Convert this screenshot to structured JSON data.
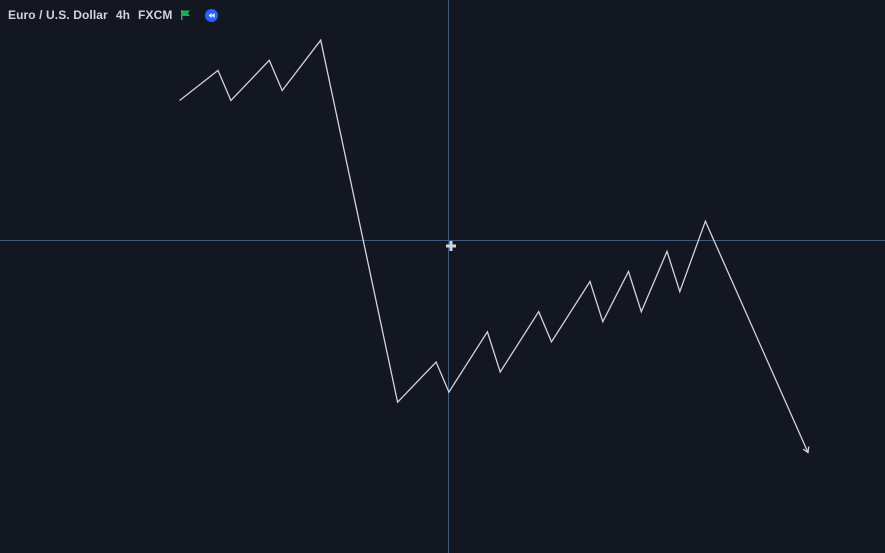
{
  "symbol": {
    "name": "Euro / U.S. Dollar",
    "interval": "4h",
    "exchange": "FXCM"
  },
  "icons": {
    "flag": "flag-icon",
    "replay": "replay-back-icon",
    "crosshair_cursor": "crosshair-cursor-icon"
  },
  "colors": {
    "background": "#131722",
    "line": "#d1d4dc",
    "crosshair": "#3d5a80",
    "flag": "#26a65b",
    "replay": "#2962ff"
  },
  "chart_data": {
    "type": "line",
    "title": "",
    "xlabel": "",
    "ylabel": "",
    "series": [
      {
        "values": [
          [
            0,
            40
          ],
          [
            3,
            43
          ],
          [
            4,
            40
          ],
          [
            7,
            44
          ],
          [
            8,
            41
          ],
          [
            11,
            46
          ],
          [
            17,
            10
          ],
          [
            20,
            14
          ],
          [
            21,
            11
          ],
          [
            24,
            17
          ],
          [
            25,
            13
          ],
          [
            28,
            19
          ],
          [
            29,
            16
          ],
          [
            32,
            22
          ],
          [
            33,
            18
          ],
          [
            35,
            23
          ],
          [
            36,
            19
          ],
          [
            38,
            25
          ],
          [
            39,
            21
          ],
          [
            41,
            28
          ],
          [
            49,
            5
          ]
        ],
        "end_marker": "arrow"
      }
    ],
    "xlim": [
      -14,
      55
    ],
    "ylim": [
      -5,
      50
    ],
    "grid": false,
    "legend": "none"
  }
}
